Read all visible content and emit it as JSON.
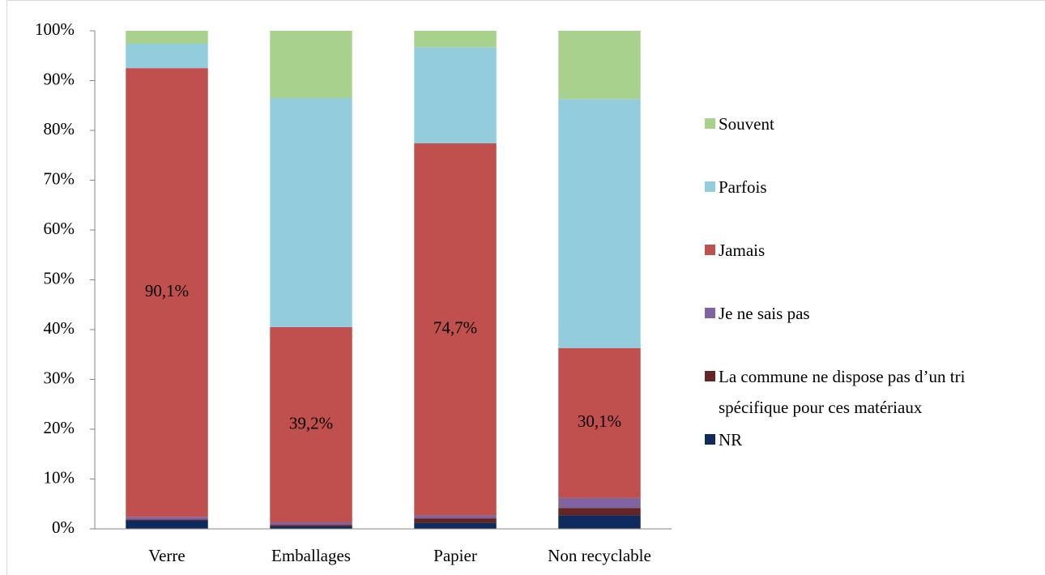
{
  "chart_data": {
    "type": "stacked_bar",
    "categories": [
      "Verre",
      "Emballages",
      "Papier",
      "Non recyclable"
    ],
    "series": [
      {
        "name": "NR",
        "color": "#0f2a5c",
        "values": [
          1.7,
          0.5,
          1.2,
          2.7
        ]
      },
      {
        "name": "La commune ne dispose pas d’un tri spécifique pour ces matériaux",
        "color": "#632523",
        "values": [
          0.2,
          0.3,
          0.9,
          1.5
        ]
      },
      {
        "name": "Je ne sais pas",
        "color": "#8064a2",
        "values": [
          0.5,
          0.5,
          0.6,
          2.0
        ]
      },
      {
        "name": "Jamais",
        "color": "#c0504d",
        "values": [
          90.1,
          39.2,
          74.7,
          30.1
        ],
        "value_labels": [
          "90,1%",
          "39,2%",
          "74,7%",
          "30,1%"
        ]
      },
      {
        "name": "Parfois",
        "color": "#93cddd",
        "values": [
          4.9,
          46.0,
          19.3,
          50.0
        ]
      },
      {
        "name": "Souvent",
        "color": "#a9d18e",
        "values": [
          2.6,
          13.5,
          3.3,
          13.7
        ]
      }
    ],
    "ylim": [
      0,
      100
    ],
    "yticks": [
      {
        "value": 0,
        "label": "0%"
      },
      {
        "value": 10,
        "label": "10%"
      },
      {
        "value": 20,
        "label": "20%"
      },
      {
        "value": 30,
        "label": "30%"
      },
      {
        "value": 40,
        "label": "40%"
      },
      {
        "value": 50,
        "label": "50%"
      },
      {
        "value": 60,
        "label": "60%"
      },
      {
        "value": 70,
        "label": "70%"
      },
      {
        "value": 80,
        "label": "80%"
      },
      {
        "value": 90,
        "label": "90%"
      },
      {
        "value": 100,
        "label": "100%"
      }
    ],
    "legend": "right"
  }
}
